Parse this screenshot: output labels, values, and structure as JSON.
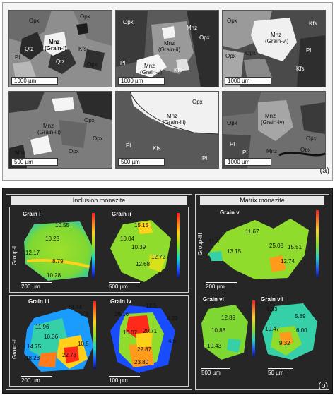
{
  "panel_a": {
    "letter": "(a)",
    "images": [
      {
        "id": "g1",
        "scale": "1000 µm",
        "labels": {
          "opx1": "Opx",
          "opx2": "Opx",
          "qtz1": "Qtz",
          "qtz2": "Qtz",
          "pl": "Pl",
          "mnz": "Mnz",
          "grain": "(Grain-i)",
          "kfs": "Kfs",
          "opx3": "Opx"
        }
      },
      {
        "id": "g2",
        "scale": "1000 µm",
        "labels": {
          "opx1": "Opx",
          "mnz1": "Mnz",
          "grain1": "(Grain-ii)",
          "mnz_top": "Mnz",
          "opx2": "Opx",
          "pl": "Pl",
          "mnz2": "Mnz",
          "grain2": "(Grain-v)",
          "kfs": "Kfs"
        }
      },
      {
        "id": "g3",
        "scale": "1000 µm",
        "labels": {
          "opx1": "Opx",
          "kfs1": "Kfs",
          "mnz": "Mnz",
          "grain": "(Grain-vi)",
          "opx2": "Opx",
          "opx3": "Opx",
          "pl": "Pl",
          "kfs2": "Kfs"
        }
      },
      {
        "id": "g4",
        "scale": "500 µm",
        "labels": {
          "mnz1": "Mnz",
          "grain1": "(Grain-iii)",
          "opx1": "Opx",
          "opx2": "Opx",
          "mnz2": "Mnz",
          "opx3": "Opx"
        }
      },
      {
        "id": "g5",
        "scale": "500 µm",
        "labels": {
          "opx": "Opx",
          "mnz": "Mnz",
          "grain": "(Grain-iii)",
          "pl1": "Pl",
          "kfs": "Kfs",
          "pl2": "Pl"
        }
      },
      {
        "id": "g6",
        "scale": "1000 µm",
        "labels": {
          "mnz1": "Mnz",
          "grain1": "(Grain-iv)",
          "opx1": "Opx",
          "pl1": "Pl",
          "pl2": "Pl",
          "opx2": "Opx",
          "mnz2": "Mnz",
          "opx3": "Opx"
        }
      }
    ]
  },
  "panel_b": {
    "letter": "(b)",
    "inclusion_title": "Inclusion monazite",
    "matrix_title": "Matrix monazite",
    "group_i": "Group-I",
    "group_ii": "Group-II",
    "group_iii": "Group-III",
    "grains": {
      "i": {
        "title": "Grain i",
        "scale": "200 µm",
        "values": [
          "10.55",
          "10.23",
          "12.17",
          "8.79",
          "10.28"
        ]
      },
      "ii": {
        "title": "Grain ii",
        "scale": "500 µm",
        "values": [
          "15.15",
          "10.04",
          "10.39",
          "12.72",
          "12.68"
        ]
      },
      "v": {
        "title": "Grain v",
        "scale": "200 µm",
        "values": [
          "11.67",
          "11.6",
          "25.08",
          "15.51",
          "13.15",
          "12.74"
        ]
      },
      "iii": {
        "title": "Grain iii",
        "scale": "200 µm",
        "values": [
          "14.44",
          "5.3",
          "11.96",
          "10.36",
          "14.75",
          "10.5",
          "18.28",
          "22.73"
        ]
      },
      "iv": {
        "title": "Grain iv",
        "scale": "100 µm",
        "values": [
          "12.5",
          "29.16",
          "4.39",
          "10.07",
          "20.71",
          "4.6",
          "22.87",
          "23.80"
        ]
      },
      "vi": {
        "title": "Grain vi",
        "scale": "500 µm",
        "values": [
          "12.89",
          "10.88",
          "10.43"
        ]
      },
      "vii": {
        "title": "Grain vii",
        "scale": "50 µm",
        "values": [
          "6.33",
          "5.89",
          "10.47",
          "6.00",
          "9.32"
        ]
      }
    }
  },
  "colors": {
    "heat_red": "#ff1a1a",
    "heat_yellow": "#ffd21a",
    "heat_green": "#8fe01a",
    "heat_cyan": "#1ad6c8",
    "heat_blue": "#1a4cff",
    "panel_dark": "#262626"
  }
}
